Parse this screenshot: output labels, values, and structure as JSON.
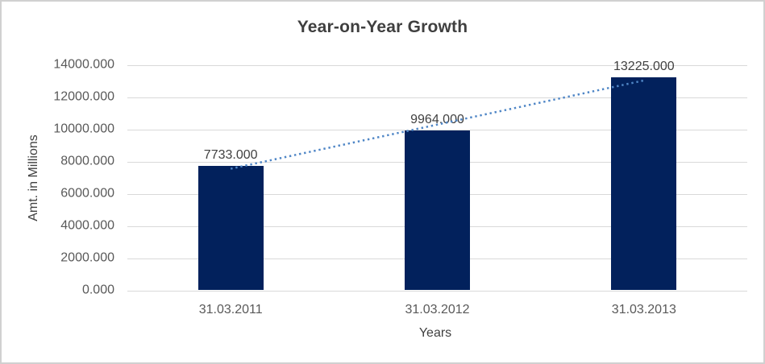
{
  "window": {
    "background": "#ffffff",
    "border_color": "#d0d0d0"
  },
  "chart_data": {
    "type": "bar",
    "title": "Year-on-Year Growth",
    "xlabel": "Years",
    "ylabel": "Amt. in Millions",
    "categories": [
      "31.03.2011",
      "31.03.2012",
      "31.03.2013"
    ],
    "values": [
      7733,
      9964,
      13225
    ],
    "data_labels": [
      "7733.000",
      "9964.000",
      "13225.000"
    ],
    "ylim": [
      0,
      14000
    ],
    "ytick_step": 2000,
    "ytick_labels": [
      "0.000",
      "2000.000",
      "4000.000",
      "6000.000",
      "8000.000",
      "10000.000",
      "12000.000",
      "14000.000"
    ],
    "grid": true,
    "legend": "none",
    "bar_color": "#02215c",
    "gridline_color": "#d9d9d9",
    "trendline": {
      "type": "linear",
      "style": "dotted",
      "color": "#4f86c6"
    },
    "title_color": "#3f3f3f",
    "tick_color": "#595959",
    "label_color": "#404040"
  }
}
